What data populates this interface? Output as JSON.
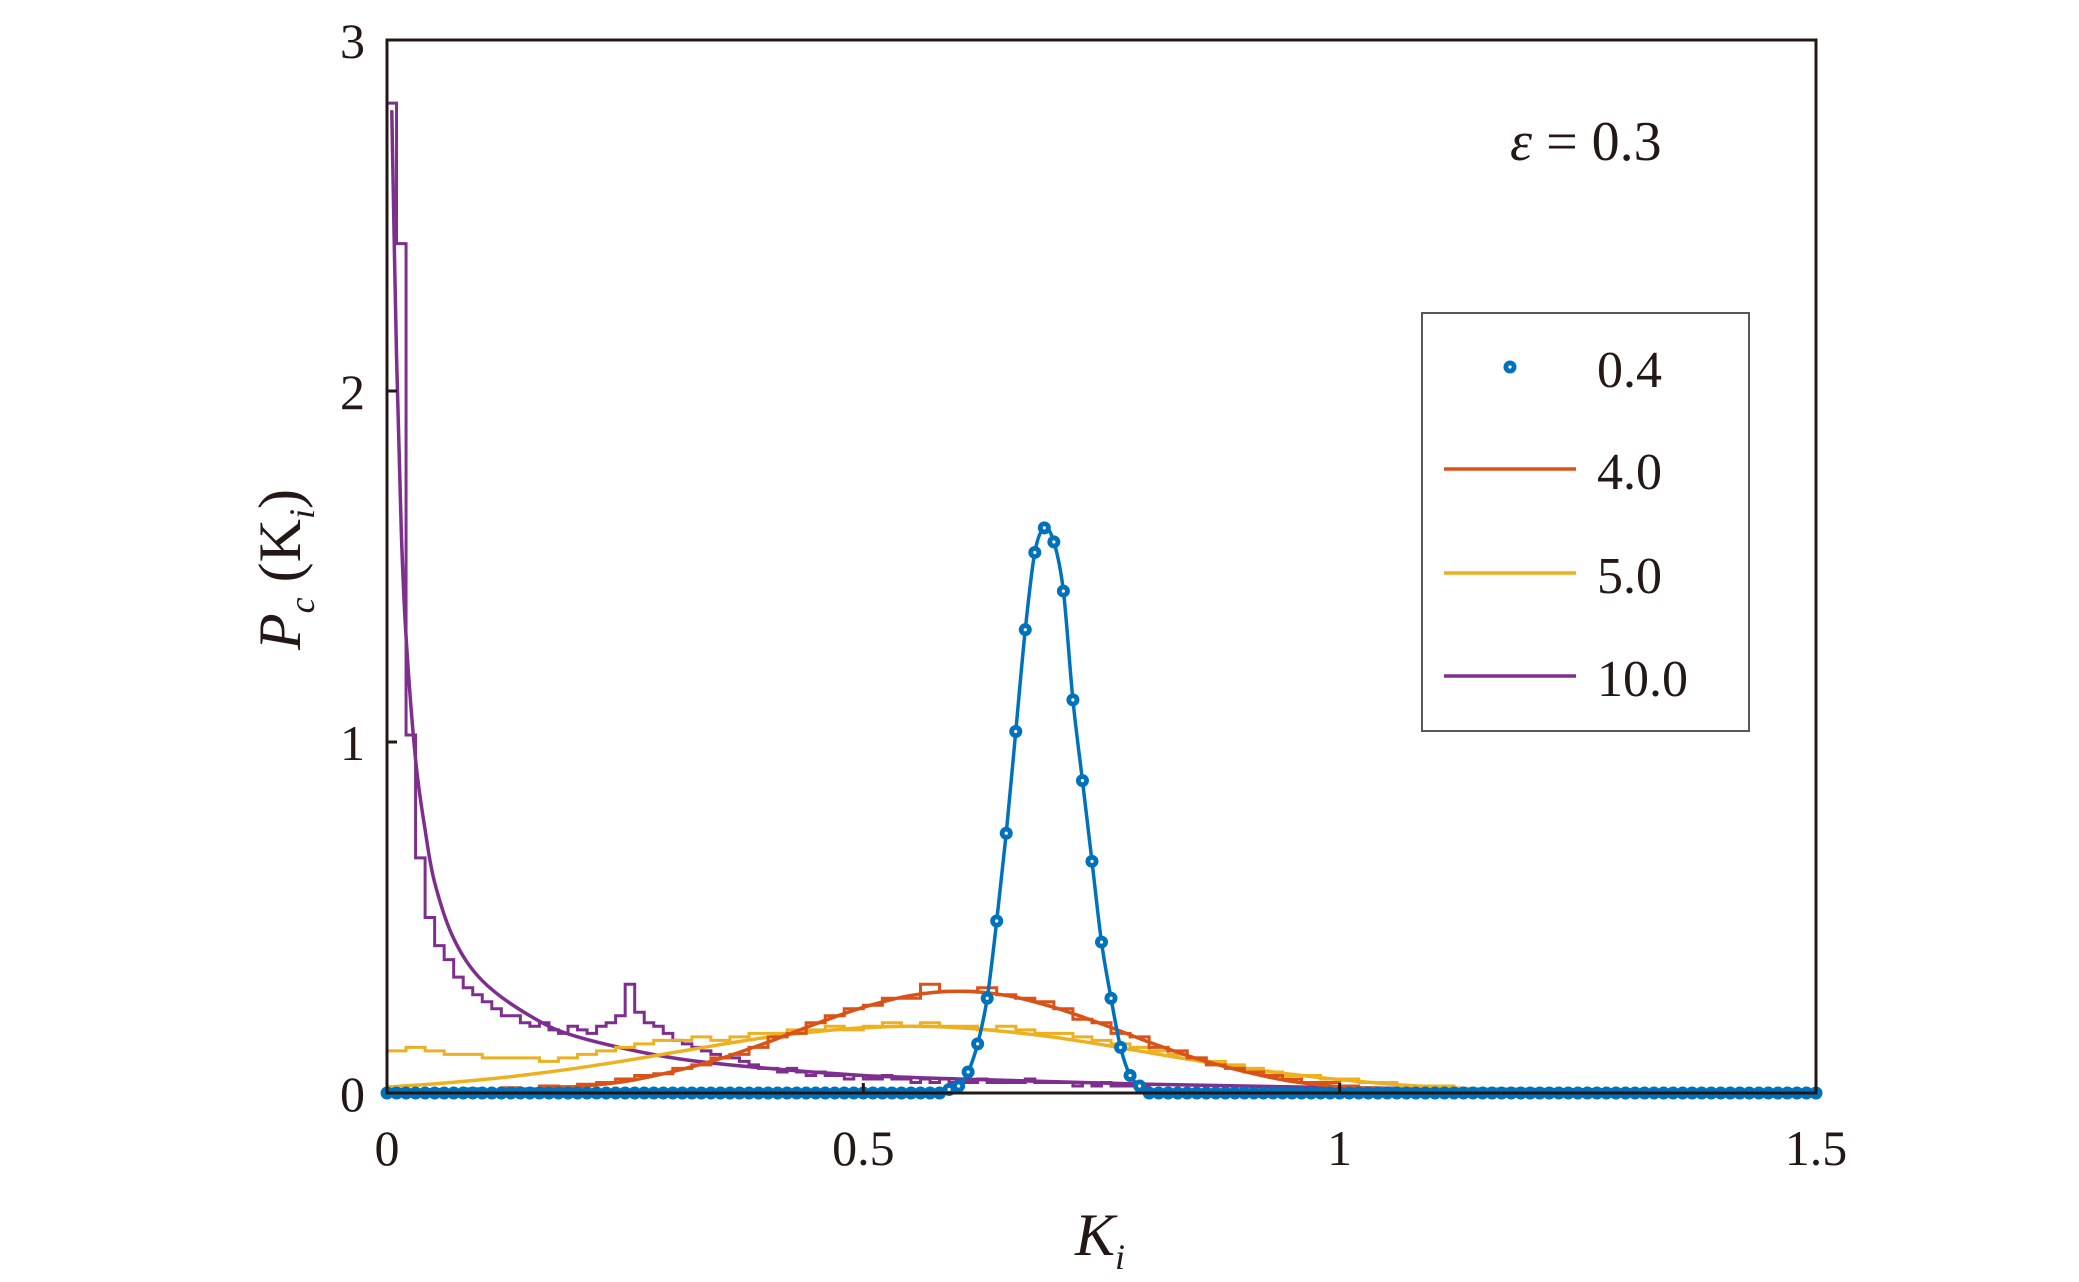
{
  "chart_data": {
    "type": "line",
    "title": "",
    "annotation": {
      "symbol": "ε",
      "text": " = 0.3"
    },
    "xlabel": {
      "main": "K",
      "sub": "i"
    },
    "ylabel": {
      "main": "P",
      "sub1": "c",
      "open": " (K",
      "sub2": "i",
      "close": ")"
    },
    "xlim": [
      0,
      1.5
    ],
    "ylim": [
      0,
      3
    ],
    "xticks": [
      0,
      0.5,
      1,
      1.5
    ],
    "xtick_labels": [
      "0",
      "0.5",
      "1",
      "1.5"
    ],
    "yticks": [
      0,
      1,
      2,
      3
    ],
    "ytick_labels": [
      "0",
      "1",
      "2",
      "3"
    ],
    "grid": false,
    "legend_position": "right",
    "colors": {
      "0.4": "#0072bd",
      "4.0": "#d95319",
      "5.0": "#edb120",
      "10.0": "#7e2f8e"
    },
    "series": [
      {
        "name": "0.4",
        "style": "markers+fit",
        "x_start": 0,
        "x_step": 0.01,
        "y": [
          0,
          0,
          0,
          0,
          0,
          0,
          0,
          0,
          0,
          0,
          0,
          0,
          0,
          0,
          0,
          0,
          0,
          0,
          0,
          0,
          0,
          0,
          0,
          0,
          0,
          0,
          0,
          0,
          0,
          0,
          0,
          0,
          0,
          0,
          0,
          0,
          0,
          0,
          0,
          0,
          0,
          0,
          0,
          0,
          0,
          0,
          0,
          0,
          0,
          0,
          0,
          0,
          0,
          0,
          0,
          0,
          0,
          0,
          0,
          0.01,
          0.02,
          0.06,
          0.14,
          0.27,
          0.49,
          0.74,
          1.03,
          1.32,
          1.54,
          1.61,
          1.57,
          1.43,
          1.12,
          0.89,
          0.66,
          0.43,
          0.27,
          0.13,
          0.05,
          0.02,
          0,
          0,
          0,
          0,
          0,
          0,
          0,
          0,
          0,
          0,
          0,
          0,
          0,
          0,
          0,
          0,
          0,
          0,
          0,
          0,
          0,
          0,
          0,
          0,
          0,
          0,
          0,
          0,
          0,
          0,
          0,
          0,
          0,
          0,
          0,
          0,
          0,
          0,
          0,
          0,
          0,
          0,
          0,
          0,
          0,
          0,
          0,
          0,
          0,
          0,
          0,
          0,
          0,
          0,
          0,
          0,
          0,
          0,
          0,
          0,
          0,
          0,
          0,
          0,
          0,
          0,
          0,
          0,
          0,
          0,
          0
        ]
      },
      {
        "name": "4.0",
        "style": "histogram+fit",
        "hist_start": 0,
        "hist_bin_width": 0.02,
        "hist": [
          0.01,
          0.005,
          0.01,
          0.005,
          0.012,
          0.008,
          0.015,
          0.012,
          0.02,
          0.018,
          0.025,
          0.03,
          0.04,
          0.05,
          0.055,
          0.07,
          0.08,
          0.1,
          0.11,
          0.13,
          0.16,
          0.17,
          0.2,
          0.22,
          0.24,
          0.25,
          0.27,
          0.27,
          0.31,
          0.29,
          0.29,
          0.3,
          0.28,
          0.27,
          0.26,
          0.24,
          0.21,
          0.2,
          0.17,
          0.16,
          0.13,
          0.12,
          0.1,
          0.08,
          0.07,
          0.06,
          0.05,
          0.04,
          0.03,
          0.03,
          0.02,
          0.015,
          0.012,
          0.01,
          0.008,
          0.005,
          0.005,
          0.003,
          0.003,
          0.002
        ],
        "fit_x": [
          0,
          0.05,
          0.1,
          0.15,
          0.2,
          0.25,
          0.3,
          0.35,
          0.4,
          0.45,
          0.5,
          0.55,
          0.6,
          0.65,
          0.7,
          0.75,
          0.8,
          0.85,
          0.9,
          0.95,
          1.0,
          1.05,
          1.1,
          1.2,
          1.3,
          1.5
        ],
        "fit_y": [
          0.001,
          0.002,
          0.004,
          0.009,
          0.018,
          0.033,
          0.061,
          0.098,
          0.145,
          0.197,
          0.244,
          0.278,
          0.29,
          0.278,
          0.244,
          0.197,
          0.145,
          0.098,
          0.061,
          0.033,
          0.018,
          0.009,
          0.004,
          0.001,
          0,
          0
        ]
      },
      {
        "name": "5.0",
        "style": "histogram+fit",
        "hist_start": 0,
        "hist_bin_width": 0.02,
        "hist": [
          0.12,
          0.13,
          0.12,
          0.11,
          0.11,
          0.1,
          0.1,
          0.1,
          0.09,
          0.1,
          0.11,
          0.12,
          0.13,
          0.14,
          0.15,
          0.15,
          0.16,
          0.15,
          0.16,
          0.17,
          0.17,
          0.18,
          0.18,
          0.19,
          0.18,
          0.19,
          0.2,
          0.19,
          0.2,
          0.19,
          0.19,
          0.18,
          0.19,
          0.18,
          0.17,
          0.17,
          0.16,
          0.15,
          0.14,
          0.13,
          0.12,
          0.11,
          0.1,
          0.09,
          0.08,
          0.07,
          0.06,
          0.05,
          0.05,
          0.04,
          0.04,
          0.03,
          0.03,
          0.02,
          0.02,
          0.02,
          0.01,
          0.01,
          0.01,
          0.01
        ],
        "fit_x": [
          0,
          0.05,
          0.1,
          0.15,
          0.2,
          0.25,
          0.3,
          0.35,
          0.4,
          0.45,
          0.5,
          0.55,
          0.6,
          0.65,
          0.7,
          0.75,
          0.8,
          0.85,
          0.9,
          0.95,
          1.0,
          1.05,
          1.1,
          1.15,
          1.2,
          1.25,
          1.3,
          1.35,
          1.4,
          1.45,
          1.5
        ],
        "fit_y": [
          0.017,
          0.026,
          0.038,
          0.053,
          0.071,
          0.092,
          0.115,
          0.138,
          0.159,
          0.175,
          0.186,
          0.19,
          0.186,
          0.175,
          0.159,
          0.138,
          0.115,
          0.092,
          0.071,
          0.053,
          0.038,
          0.026,
          0.017,
          0.011,
          0.006,
          0.004,
          0.002,
          0.001,
          0.001,
          0,
          0
        ]
      },
      {
        "name": "10.0",
        "style": "histogram+fit",
        "hist_start": 0,
        "hist_bin_width": 0.01,
        "hist": [
          2.82,
          2.42,
          1.02,
          0.67,
          0.5,
          0.42,
          0.38,
          0.33,
          0.3,
          0.28,
          0.26,
          0.24,
          0.22,
          0.22,
          0.2,
          0.19,
          0.2,
          0.18,
          0.17,
          0.19,
          0.18,
          0.17,
          0.19,
          0.2,
          0.22,
          0.31,
          0.23,
          0.2,
          0.19,
          0.17,
          0.15,
          0.14,
          0.13,
          0.12,
          0.11,
          0.1,
          0.1,
          0.09,
          0.08,
          0.07,
          0.07,
          0.06,
          0.07,
          0.06,
          0.05,
          0.06,
          0.05,
          0.05,
          0.04,
          0.05,
          0.04,
          0.04,
          0.05,
          0.04,
          0.04,
          0.03,
          0.04,
          0.03,
          0.04,
          0.03,
          0.03,
          0.03,
          0.04,
          0.03,
          0.03,
          0.03,
          0.03,
          0.04,
          0.03,
          0.03,
          0.03,
          0.03,
          0.02,
          0.03,
          0.02,
          0.03,
          0.02,
          0.02,
          0.02,
          0.02
        ],
        "fit_x": [
          0.005,
          0.01,
          0.015,
          0.02,
          0.03,
          0.04,
          0.05,
          0.07,
          0.1,
          0.15,
          0.2,
          0.3,
          0.4,
          0.5,
          0.6,
          0.8,
          1.0,
          1.2,
          1.5
        ],
        "fit_y": [
          2.8,
          2.1,
          1.6,
          1.3,
          0.95,
          0.75,
          0.6,
          0.44,
          0.32,
          0.22,
          0.16,
          0.1,
          0.07,
          0.05,
          0.04,
          0.025,
          0.015,
          0.01,
          0.005
        ]
      }
    ],
    "legend": [
      "0.4",
      "4.0",
      "5.0",
      "10.0"
    ]
  }
}
